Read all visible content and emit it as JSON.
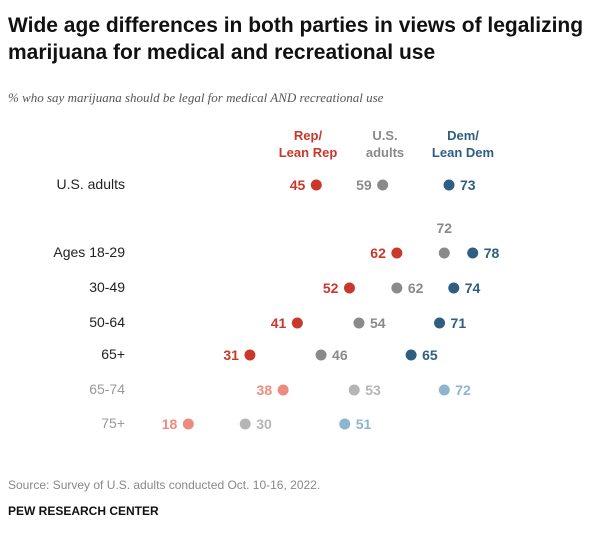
{
  "title": "Wide age differences in both parties in views of legalizing marijuana for medical and recreational use",
  "subtitle": "% who say marijuana should be legal for medical AND recreational use",
  "source": "Source: Survey of U.S. adults conducted Oct. 10-16, 2022.",
  "org": "PEW RESEARCH CENTER",
  "colors": {
    "rep": "#c8382b",
    "rep_light": "#ec8c80",
    "us": "#8a8a8a",
    "us_light": "#b5b5b5",
    "dem": "#2e5f83",
    "dem_light": "#8db5d1",
    "label_dark": "#222222",
    "label_light": "#999999"
  },
  "chart_data": {
    "type": "dot",
    "series": [
      {
        "name": "Rep/\nLean Rep",
        "key": "rep"
      },
      {
        "name": "U.S.\nadults",
        "key": "us"
      },
      {
        "name": "Dem/\nLean Dem",
        "key": "dem"
      }
    ],
    "categories": [
      "U.S. adults",
      "Ages 18-29",
      "30-49",
      "50-64",
      "65+",
      "65-74",
      "75+"
    ],
    "rows": [
      {
        "label": "U.S. adults",
        "rep": 45,
        "us": 59,
        "dem": 73,
        "light": false
      },
      {
        "label": "Ages 18-29",
        "rep": 62,
        "us": 72,
        "dem": 78,
        "light": false
      },
      {
        "label": "30-49",
        "rep": 52,
        "us": 62,
        "dem": 74,
        "light": false
      },
      {
        "label": "50-64",
        "rep": 41,
        "us": 54,
        "dem": 71,
        "light": false
      },
      {
        "label": "65+",
        "rep": 31,
        "us": 46,
        "dem": 65,
        "light": false
      },
      {
        "label": "65-74",
        "rep": 38,
        "us": 53,
        "dem": 72,
        "light": true
      },
      {
        "label": "75+",
        "rep": 18,
        "us": 30,
        "dem": 51,
        "light": true
      }
    ]
  }
}
